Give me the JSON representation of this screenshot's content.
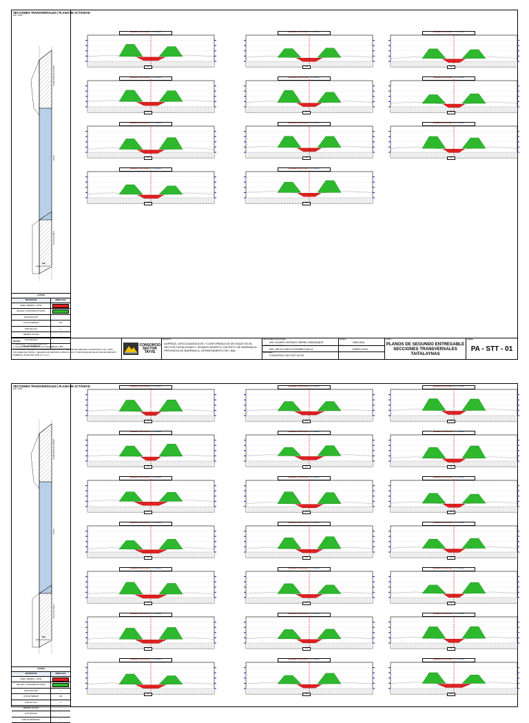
{
  "sheet_header": {
    "title": "SECCIONES TRANSVERSALES | PLANO DE ACTIVIDAD",
    "subtitle": "ESC: 1/150"
  },
  "sidebar_labels": {
    "upper_band": "PLATAFORMA DE CAMINO",
    "blue_band": "CAUCE",
    "lower_band": "TALUD DE DIQUE",
    "axis_mark": "EJE",
    "axis_note": "CAMINO EXISTENTE"
  },
  "legend": {
    "title": "LEYENDA",
    "col_desc": "DESCRIPCION",
    "col_symbol": "SIMBOLOGIA",
    "items": [
      {
        "desc": "PERFIL TERRENO / CORTE",
        "color": "#e02020",
        "symbol": ""
      },
      {
        "desc": "RELLENO / CONFORMACION DIQUE",
        "color": "#2db82d",
        "symbol": ""
      },
      {
        "desc": "EJE DE SECCION",
        "color": "",
        "symbol": "---"
      },
      {
        "desc": "COTA DE TERRENO",
        "color": "",
        "symbol": "000"
      },
      {
        "desc": "NIVEL DE AGUA",
        "color": "",
        "symbol": "~~~"
      },
      {
        "desc": "TERRENO NATURAL",
        "color": "",
        "symbol": "- - -"
      },
      {
        "desc": "COTA RASANTE",
        "color": "",
        "symbol": "---"
      },
      {
        "desc": "LINEA DE REFERENCIA",
        "color": "",
        "symbol": "- - -"
      }
    ]
  },
  "section_label": {
    "left": "BARRERA TAITALAYNAS",
    "mid": "- K: 0",
    "right": "TOLERAN"
  },
  "title_block": {
    "notes_heading": "NOTAS:",
    "notes": [
      "1. MEDIDAS Y COTAS EN METROS",
      "2. ESCALA PARA FORMATO A3 CONSIDERAR 1:800",
      "3. UNIDADES DE MEDIDA PARA AREAS DE CORTE Y RELLENO EN METROS CUADRADOS (m2), PARA VOLUMEN DE CORTE Y RELLENO EN METROS CUBICOS (m3) Y PARA NIVELES DE ALTURA EN METROS SOBRE EL NIVEL DEL MAR (m.s.n.m.)"
    ],
    "company": "CONSORCIO SECTOR TAYVE",
    "project_label": "PROYECTO:",
    "project": "LIMPIEZA, DESCOLMATACION Y CONFORMACION DE DIQUE EN EL SECTOR TAITALAYNAS Y VENADO MUERTO, DISTRITO DE BARRANCA, PROVINCIA DE BARRANCA, DEPARTAMENTO DE LIMA",
    "resp_label": "RESPONSABLE DE ACTIVIDAD:",
    "resp": "ING. ALVARO GUSTAVO SIERRA YAMUNAQUE",
    "sup_label": "SUPERVISOR DE ACTIVIDAD:",
    "sup": "ING. ERLIN CARLOS RAMIREZ MILLA",
    "exec_label": "EJECUTADO:",
    "exec": "CONSORCIO SECTOR TAYVE",
    "scale_label": "ESCALA:",
    "scale": "INDICADA",
    "date_label": "FECHA:",
    "date": "ENERO 2024",
    "sheet_label": "PLANO:",
    "sheet_title": "PLANOS DE SEGUNDO ENTREGABLE SECCIONES TRANSVERSALES TAITALAYNAS",
    "code_label": "LAMINA:",
    "code": "PA - STT - 01"
  },
  "colors": {
    "cut": "#e02020",
    "fill": "#2db82d",
    "axis": "#d01010",
    "ticks": "#1f3fbf",
    "channel": "#b8d0ea"
  }
}
